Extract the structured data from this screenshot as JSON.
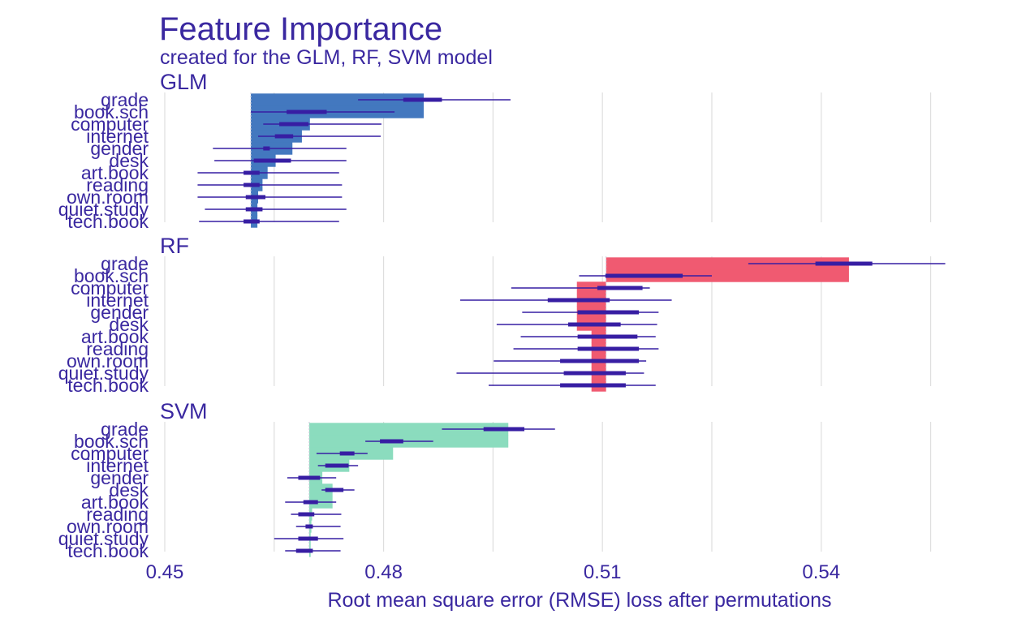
{
  "chart_data": {
    "type": "bar",
    "title": "Feature Importance",
    "subtitle": "created for the GLM, RF, SVM model",
    "xlabel": "Root mean square error (RMSE) loss after permutations",
    "xlim": [
      0.45,
      0.5595
    ],
    "xticks": [
      0.45,
      0.48,
      0.51,
      0.54
    ],
    "xtick_labels": [
      "0.45",
      "0.48",
      "0.51",
      "0.54"
    ],
    "grid": true,
    "categories": [
      "grade",
      "book.sch",
      "computer",
      "internet",
      "gender",
      "desk",
      "art.book",
      "reading",
      "own.room",
      "quiet.study",
      "tech.book"
    ],
    "panels": [
      {
        "name": "GLM",
        "color": "#4378bf",
        "baseline": 0.4618,
        "values": [
          0.4855,
          0.4855,
          0.4699,
          0.4688,
          0.4675,
          0.4652,
          0.4641,
          0.4634,
          0.4628,
          0.4627,
          0.4627
        ],
        "whisker_low": [
          0.4765,
          0.4618,
          0.4635,
          0.4628,
          0.4566,
          0.4568,
          0.4545,
          0.4545,
          0.4545,
          0.4555,
          0.4547
        ],
        "whisker_high": [
          0.4974,
          0.4815,
          0.4797,
          0.4796,
          0.4749,
          0.4749,
          0.4739,
          0.4743,
          0.4743,
          0.4749,
          0.4739
        ],
        "box_low": [
          0.4827,
          0.4667,
          0.4657,
          0.4651,
          0.4635,
          0.4622,
          0.4608,
          0.4608,
          0.4611,
          0.4611,
          0.4608
        ],
        "box_high": [
          0.488,
          0.4722,
          0.4697,
          0.4676,
          0.4644,
          0.4673,
          0.463,
          0.463,
          0.4638,
          0.4634,
          0.463
        ]
      },
      {
        "name": "RF",
        "color": "#f05a71",
        "baseline": 0.5105,
        "values": [
          0.5438,
          0.5438,
          0.5065,
          0.5065,
          0.5065,
          0.5065,
          0.5085,
          0.5085,
          0.5085,
          0.5085,
          0.5085
        ],
        "whisker_low": [
          0.53,
          0.5068,
          0.4975,
          0.4905,
          0.499,
          0.4955,
          0.4988,
          0.4978,
          0.4951,
          0.49,
          0.4944
        ],
        "whisker_high": [
          0.557,
          0.525,
          0.5165,
          0.5195,
          0.5177,
          0.5175,
          0.5173,
          0.5177,
          0.516,
          0.5157,
          0.5173
        ],
        "box_low": [
          0.5392,
          0.5104,
          0.5093,
          0.5025,
          0.5066,
          0.5053,
          0.5066,
          0.5066,
          0.5042,
          0.5047,
          0.5042
        ],
        "box_high": [
          0.547,
          0.521,
          0.5155,
          0.511,
          0.515,
          0.5125,
          0.5148,
          0.515,
          0.515,
          0.5132,
          0.5132
        ]
      },
      {
        "name": "SVM",
        "color": "#8bdcbe",
        "baseline": 0.4698,
        "values": [
          0.4971,
          0.4971,
          0.4813,
          0.4753,
          0.4716,
          0.473,
          0.473,
          0.4702,
          0.4701,
          0.47,
          0.47
        ],
        "whisker_low": [
          0.488,
          0.4775,
          0.4708,
          0.471,
          0.4668,
          0.4715,
          0.4665,
          0.4673,
          0.468,
          0.465,
          0.4665
        ],
        "whisker_high": [
          0.5035,
          0.4868,
          0.4778,
          0.4765,
          0.4735,
          0.476,
          0.4735,
          0.4742,
          0.4741,
          0.4745,
          0.4741
        ],
        "box_low": [
          0.4937,
          0.4795,
          0.474,
          0.472,
          0.4683,
          0.472,
          0.469,
          0.4683,
          0.4693,
          0.4683,
          0.468
        ],
        "box_high": [
          0.4993,
          0.4827,
          0.476,
          0.4752,
          0.4713,
          0.4745,
          0.471,
          0.4705,
          0.4703,
          0.471,
          0.4703
        ]
      }
    ]
  },
  "styles": {
    "text_color": "#3a28a0",
    "line_color": "#371ea3",
    "grid_color": "#dedede"
  }
}
